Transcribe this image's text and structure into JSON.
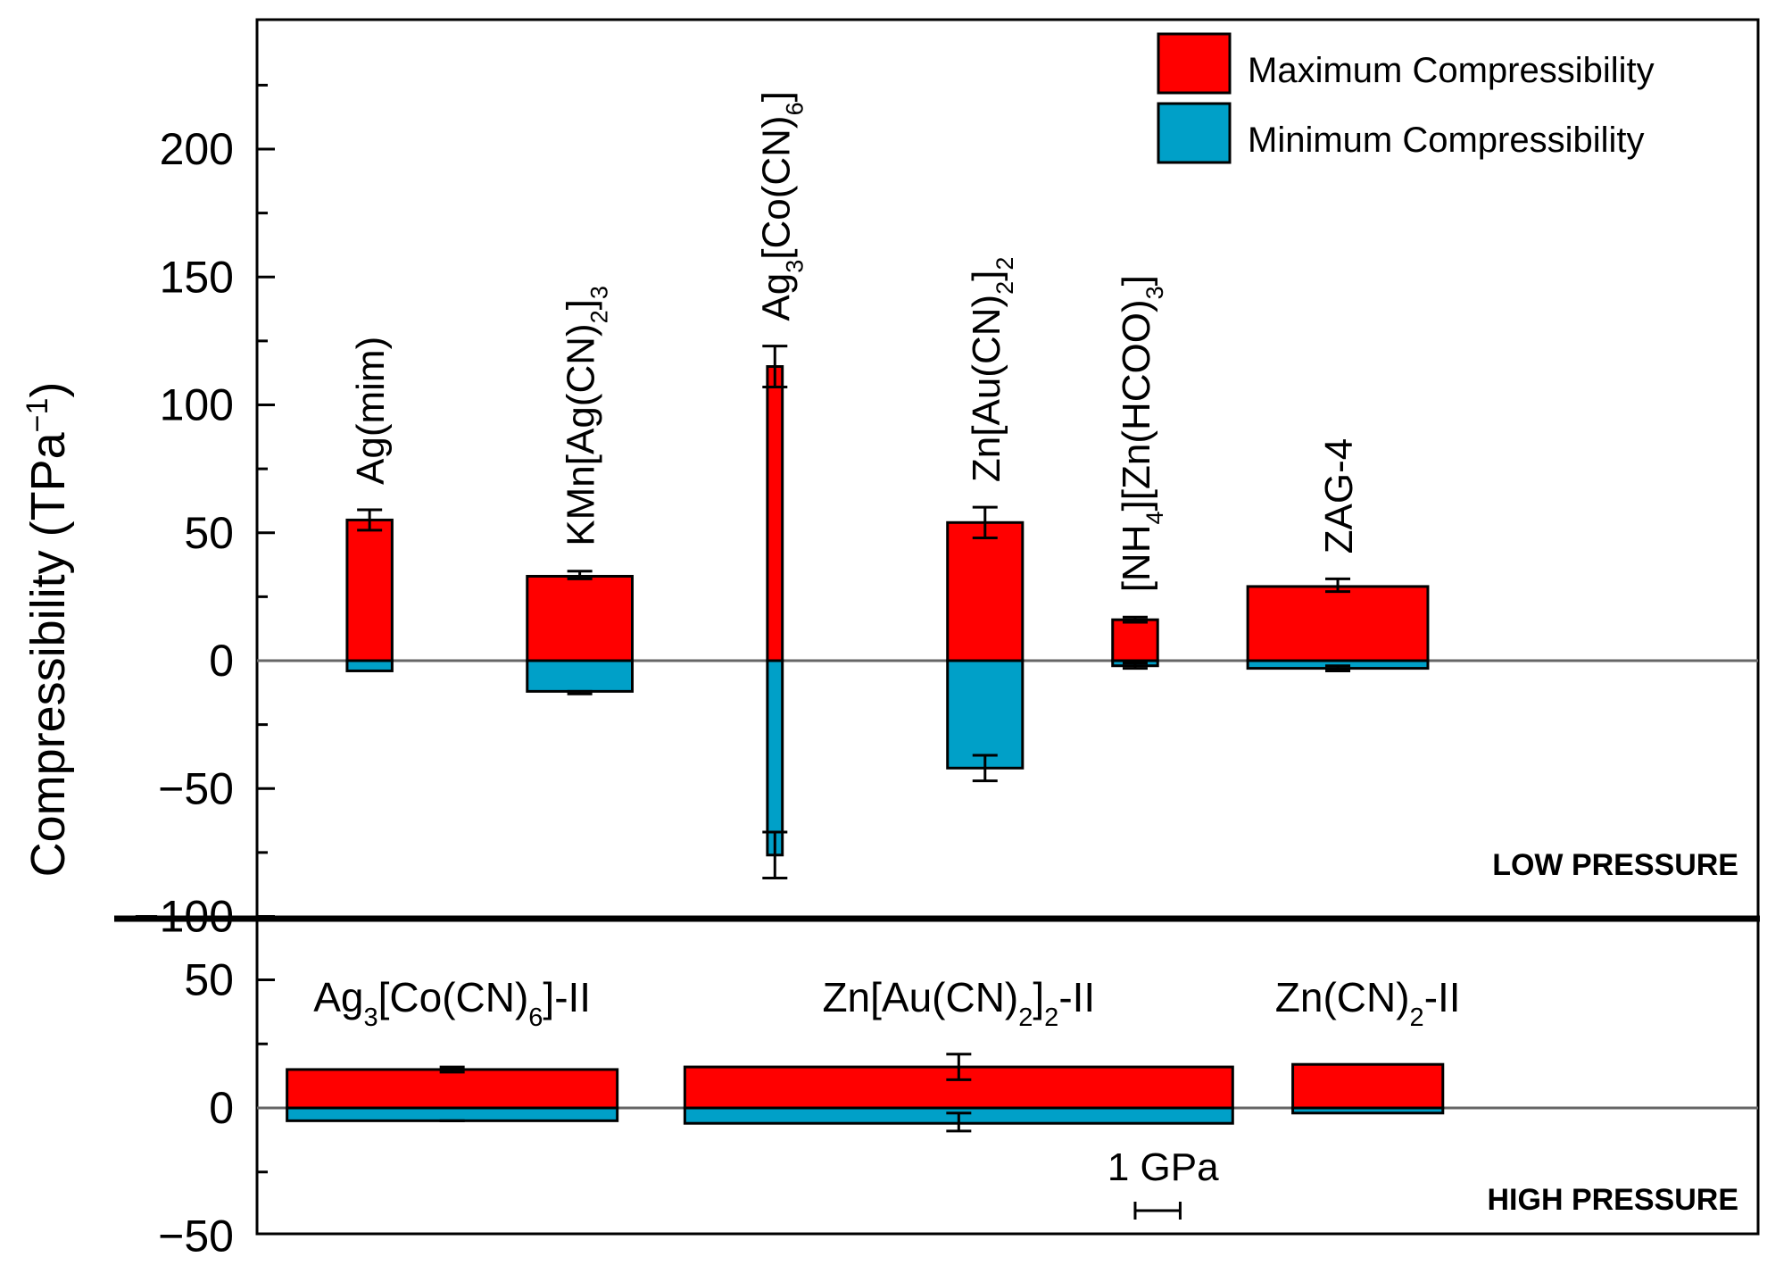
{
  "chart_data": {
    "type": "bar",
    "ylabel": "Compressibility (TPa",
    "ylabel_sup": "−1",
    "ylabel_close": ")",
    "legend": {
      "max_label": "Maximum Compressibility",
      "min_label": "Minimum Compressibility",
      "max_color": "#ff0000",
      "min_color": "#00a0c8"
    },
    "colors": {
      "max": "#ff0000",
      "min": "#00a0c8",
      "zero_line": "#666666",
      "axis": "#000000"
    },
    "low_pressure": {
      "tag": "LOW PRESSURE",
      "ylim": [
        -100,
        240
      ],
      "yticks": [
        200,
        150,
        100,
        50,
        0,
        -50,
        -100
      ],
      "ytick_labels": [
        "200",
        "150",
        "100",
        "50",
        "0",
        "−50",
        "−100"
      ],
      "xlim": [
        0,
        100
      ],
      "series": [
        {
          "name": "Ag(mim)",
          "sub": "",
          "tail": "",
          "x0": 6,
          "x1": 9,
          "max": 55,
          "max_err": [
            51,
            59
          ],
          "min": -4,
          "min_err": null
        },
        {
          "name": "KMn[Ag(CN)",
          "sub": "2",
          "tail": "]",
          "sub2": "3",
          "x0": 18,
          "x1": 25,
          "max": 33,
          "max_err": [
            32,
            35
          ],
          "min": -12,
          "min_err": [
            -13,
            -12
          ]
        },
        {
          "name": "Ag",
          "sub": "3",
          "tail": "[Co(CN)",
          "sub2": "6",
          "tail2": "]",
          "x0": 34,
          "x1": 35,
          "max": 115,
          "max_err": [
            107,
            123
          ],
          "min": -76,
          "min_err": [
            -67,
            -85
          ]
        },
        {
          "name": "Zn[Au(CN)",
          "sub": "2",
          "tail": "]",
          "sub2": "2",
          "x0": 46,
          "x1": 51,
          "max": 54,
          "max_err": [
            48,
            60
          ],
          "min": -42,
          "min_err": [
            -37,
            -47
          ]
        },
        {
          "name": "[NH",
          "sub": "4",
          "tail": "][Zn(HCOO)",
          "sub2": "3",
          "tail2": "]",
          "x0": 57,
          "x1": 60,
          "max": 16,
          "max_err": [
            15,
            17
          ],
          "min": -2,
          "min_err": [
            -3,
            -1
          ]
        },
        {
          "name": "ZAG-4",
          "sub": "",
          "tail": "",
          "x0": 66,
          "x1": 78,
          "max": 29,
          "max_err": [
            27,
            32
          ],
          "min": -3,
          "min_err": [
            -4,
            -2
          ]
        }
      ]
    },
    "high_pressure": {
      "tag": "HIGH PRESSURE",
      "ylim": [
        -50,
        70
      ],
      "yticks": [
        50,
        0,
        -50
      ],
      "ytick_labels": [
        "50",
        "0",
        "−50"
      ],
      "xlim": [
        0,
        100
      ],
      "series": [
        {
          "name": "Ag",
          "sub": "3",
          "tail": "[Co(CN)",
          "sub2": "6",
          "tail2": "]-II",
          "x0": 2,
          "x1": 24,
          "max": 15,
          "max_err": [
            14,
            16
          ],
          "min": -5,
          "min_err": [
            -5,
            -5
          ]
        },
        {
          "name": "Zn[Au(CN)",
          "sub": "2",
          "tail": "]",
          "sub2": "2",
          "tail2": "-II",
          "x0": 28.5,
          "x1": 65,
          "max": 16,
          "max_err": [
            11,
            21
          ],
          "min": -6,
          "min_err": [
            -2,
            -9
          ]
        },
        {
          "name": "Zn(CN)",
          "sub": "2",
          "tail": "-II",
          "x0": 69,
          "x1": 79,
          "max": 17,
          "max_err": null,
          "min": -2,
          "min_err": null
        }
      ],
      "scale_bar": {
        "label": "1 GPa",
        "x0": 58.5,
        "x1": 61.5
      }
    }
  }
}
